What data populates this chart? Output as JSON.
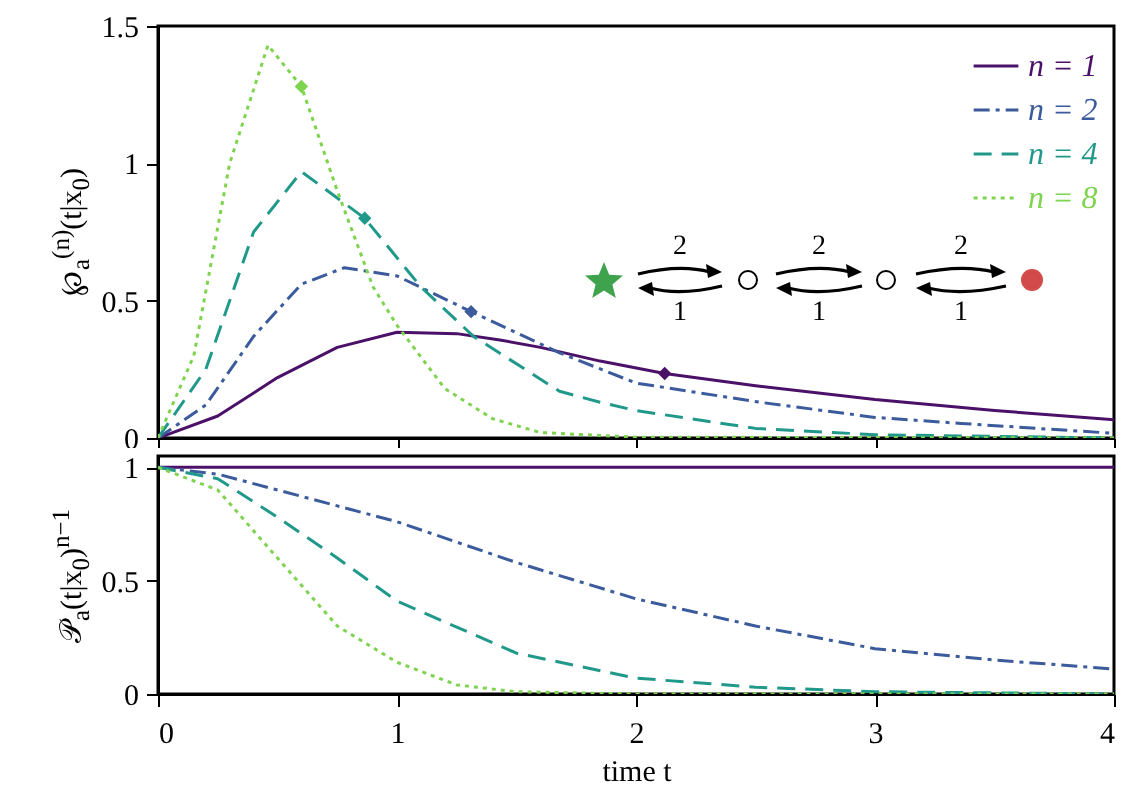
{
  "chart_data": [
    {
      "type": "line",
      "ylabel": "℘$_{a}$$^{(n)}$(t|x$_{0}$)",
      "xlim": [
        0,
        4
      ],
      "xticks": [
        0,
        1,
        2,
        3,
        4
      ],
      "ylim": [
        0,
        1.5
      ],
      "yticks": [
        0,
        0.5,
        1,
        1.5
      ],
      "tick_labels": "y",
      "legend": "top right",
      "annotations": [
        "2",
        "1",
        "2",
        "1",
        "2",
        "1"
      ],
      "series": [
        {
          "name": "n = 1",
          "color": "#4b1068",
          "line_style": "solid",
          "x": [
            0,
            0.25,
            0.5,
            0.75,
            1,
            1.25,
            1.43,
            1.6,
            1.85,
            2.12,
            2.5,
            3,
            3.5,
            4
          ],
          "values": [
            0,
            0.08,
            0.22,
            0.33,
            0.385,
            0.38,
            0.357,
            0.33,
            0.28,
            0.235,
            0.19,
            0.14,
            0.1,
            0.066
          ]
        },
        {
          "name": "n = 2",
          "color": "#3b5b9c",
          "line_style": "dashdot",
          "x": [
            0,
            0.2,
            0.4,
            0.6,
            0.78,
            1,
            1.31,
            1.68,
            2,
            2.52,
            3,
            3.36,
            4
          ],
          "values": [
            0,
            0.12,
            0.37,
            0.56,
            0.62,
            0.59,
            0.46,
            0.31,
            0.2,
            0.13,
            0.075,
            0.053,
            0.017
          ]
        },
        {
          "name": "n = 4",
          "color": "#21998a",
          "line_style": "dashed",
          "x": [
            0,
            0.2,
            0.4,
            0.6,
            0.865,
            1.1,
            1.32,
            1.68,
            1.85,
            2,
            2.5,
            3,
            4
          ],
          "values": [
            0,
            0.25,
            0.75,
            0.97,
            0.8,
            0.55,
            0.37,
            0.17,
            0.13,
            0.1,
            0.035,
            0.012,
            0
          ]
        },
        {
          "name": "n = 8",
          "color": "#7ed34f",
          "line_style": "dotted",
          "x": [
            0,
            0.15,
            0.3,
            0.46,
            0.6,
            0.75,
            0.9,
            1,
            1.2,
            1.4,
            1.6,
            2,
            4
          ],
          "values": [
            0,
            0.3,
            1,
            1.43,
            1.28,
            0.9,
            0.55,
            0.41,
            0.18,
            0.07,
            0.02,
            0.003,
            0
          ]
        },
        {
          "type": "scatter",
          "marker": "diamond",
          "x": [
            0.6,
            0.865,
            1.31,
            2.12
          ],
          "values": [
            1.28,
            0.8,
            0.46,
            0.235
          ],
          "colors": [
            "#7ed34f",
            "#21998a",
            "#3b5b9c",
            "#4b1068"
          ]
        }
      ]
    },
    {
      "type": "line",
      "xlabel": "time t",
      "ylabel": "𝒫$_{a}$(t|x$_{0}$)$^{n−1}$",
      "xlim": [
        0,
        4
      ],
      "xticks": [
        0,
        1,
        2,
        3,
        4
      ],
      "ylim": [
        0,
        1.05
      ],
      "yticks": [
        0,
        0.5,
        1
      ],
      "series": [
        {
          "color": "#4b1068",
          "line_style": "solid",
          "x": [
            0,
            4
          ],
          "values": [
            1,
            1
          ]
        },
        {
          "color": "#3b5b9c",
          "line_style": "dashdot",
          "x": [
            0,
            0.25,
            0.5,
            0.75,
            1,
            1.5,
            2,
            2.5,
            3,
            3.5,
            4
          ],
          "values": [
            1,
            0.97,
            0.9,
            0.83,
            0.76,
            0.58,
            0.42,
            0.3,
            0.2,
            0.15,
            0.11
          ]
        },
        {
          "color": "#21998a",
          "line_style": "dashed",
          "x": [
            0,
            0.25,
            0.5,
            0.75,
            1,
            1.5,
            2,
            2.5,
            3,
            4
          ],
          "values": [
            1,
            0.95,
            0.78,
            0.6,
            0.41,
            0.18,
            0.07,
            0.03,
            0.01,
            0
          ]
        },
        {
          "color": "#7ed34f",
          "line_style": "dotted",
          "x": [
            0,
            0.25,
            0.5,
            0.75,
            1,
            1.25,
            1.5,
            2,
            4
          ],
          "values": [
            1,
            0.9,
            0.6,
            0.3,
            0.14,
            0.04,
            0.01,
            0,
            0
          ]
        }
      ]
    }
  ]
}
